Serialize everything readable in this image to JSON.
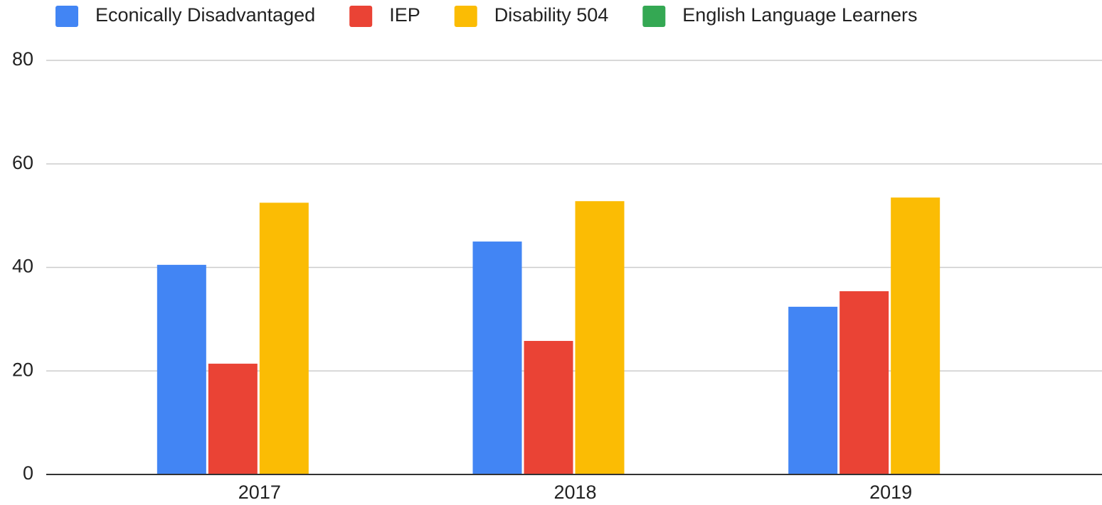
{
  "chart_data": {
    "type": "bar",
    "categories": [
      "2017",
      "2018",
      "2019"
    ],
    "series": [
      {
        "name": "Econically Disadvantaged",
        "color": "#4285f4",
        "values": [
          40.5,
          45.0,
          32.4
        ]
      },
      {
        "name": "IEP",
        "color": "#ea4335",
        "values": [
          21.4,
          25.8,
          35.4
        ]
      },
      {
        "name": "Disability 504",
        "color": "#fbbc04",
        "values": [
          52.5,
          52.8,
          53.5
        ]
      },
      {
        "name": "English Language Learners",
        "color": "#34a853",
        "values": [
          null,
          null,
          null
        ]
      }
    ],
    "ylim": [
      0,
      80
    ],
    "yticks": [
      0,
      20,
      40,
      60,
      80
    ],
    "grid": true,
    "legend": "top"
  }
}
